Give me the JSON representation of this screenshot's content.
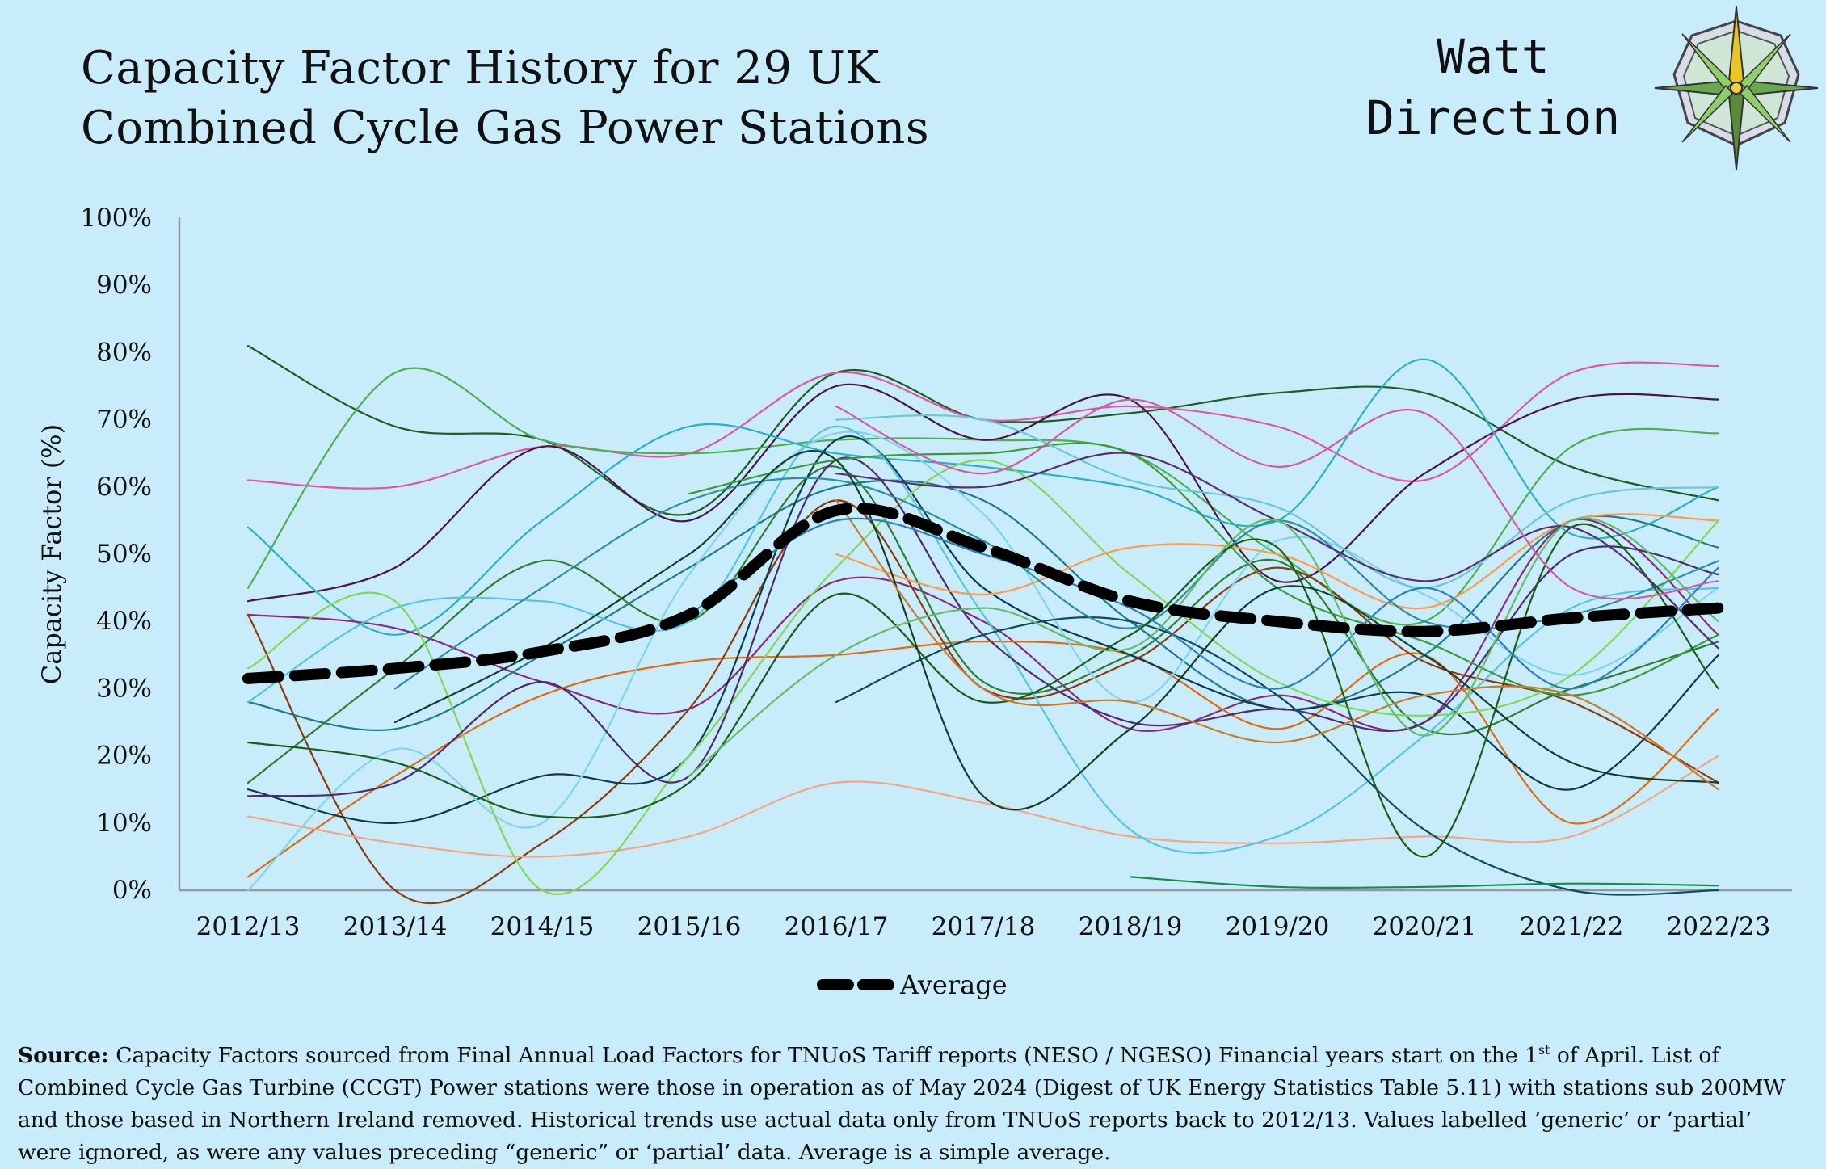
{
  "header": {
    "title_line1": "Capacity Factor History for 29 UK",
    "title_line2": "Combined Cycle Gas Power Stations",
    "brand_line1": "Watt",
    "brand_line2": "Direction"
  },
  "chart_data": {
    "type": "line",
    "title": "Capacity Factor History for 29 UK Combined Cycle Gas Power Stations",
    "xlabel": "",
    "ylabel": "Capacity Factor (%)",
    "categories": [
      "2012/13",
      "2013/14",
      "2014/15",
      "2015/16",
      "2016/17",
      "2017/18",
      "2018/19",
      "2019/20",
      "2020/21",
      "2021/22",
      "2022/23"
    ],
    "y_ticks": [
      "0%",
      "10%",
      "20%",
      "30%",
      "40%",
      "50%",
      "60%",
      "70%",
      "80%",
      "90%",
      "100%"
    ],
    "ylim": [
      0,
      100
    ],
    "grid": false,
    "legend_position": "bottom-center",
    "average": {
      "name": "Average",
      "color": "#000000",
      "values": [
        31.5,
        33,
        35.5,
        41,
        56.5,
        51,
        43,
        40,
        38.5,
        40.5,
        42
      ]
    },
    "series": [
      {
        "color": "#1b5e20",
        "values": [
          81,
          69,
          67,
          56,
          77,
          70,
          71,
          74,
          74,
          63,
          58
        ]
      },
      {
        "color": "#e0569f",
        "values": [
          61,
          60,
          66,
          65,
          77,
          70,
          72,
          69,
          61,
          77,
          78
        ]
      },
      {
        "color": "#4caf50",
        "values": [
          45,
          77,
          67,
          65,
          67,
          67,
          65,
          50,
          40,
          66,
          68
        ]
      },
      {
        "color": "#4a1448",
        "values": [
          43,
          48,
          66,
          55,
          75,
          67,
          73,
          46,
          62,
          73,
          73
        ]
      },
      {
        "color": "#2ab0c8",
        "values": [
          54,
          38,
          55,
          69,
          65,
          63,
          60,
          55,
          79,
          53,
          60
        ]
      },
      {
        "color": "#8a2a7a",
        "values": [
          41,
          39,
          31,
          27,
          46,
          40,
          24,
          29,
          25,
          55,
          38
        ]
      },
      {
        "color": "#e06a10",
        "values": [
          2,
          17,
          29,
          34,
          35,
          37,
          35,
          24,
          35,
          10,
          27
        ]
      },
      {
        "color": "#8b3a0e",
        "values": [
          41,
          0,
          7,
          27,
          58,
          30,
          34,
          48,
          34,
          28,
          16
        ]
      },
      {
        "color": "#f4a582",
        "values": [
          11,
          7,
          5,
          8,
          16,
          13,
          8,
          7,
          8,
          8,
          20
        ]
      },
      {
        "color": "#1f7a8c",
        "values": [
          28,
          24,
          35,
          48,
          60,
          58,
          40,
          27,
          35,
          55,
          51
        ]
      },
      {
        "color": "#2e7d32",
        "values": [
          16,
          33,
          49,
          40,
          63,
          31,
          35,
          49,
          24,
          30,
          37
        ]
      },
      {
        "color": "#0d3b4c",
        "values": [
          15,
          10,
          17,
          20,
          67,
          45,
          35,
          27,
          29,
          15,
          35
        ]
      },
      {
        "color": "#80d4ee",
        "values": [
          0,
          21,
          10,
          47,
          68,
          56,
          28,
          52,
          44,
          32,
          45
        ]
      },
      {
        "color": "#56c4e6",
        "values": [
          28,
          42,
          43,
          40,
          69,
          41,
          9,
          8,
          23,
          42,
          45
        ]
      },
      {
        "color": "#7ed957",
        "values": [
          33,
          43,
          0,
          20,
          48,
          64,
          47,
          31,
          26,
          32,
          55
        ]
      },
      {
        "color": "#4e2a6e",
        "values": [
          14,
          16,
          31,
          17,
          64,
          38,
          25,
          27,
          25,
          50,
          47
        ]
      },
      {
        "color": "#ff9a4a",
        "values": [
          null,
          null,
          null,
          null,
          50,
          44,
          51,
          50,
          42,
          55,
          55
        ]
      },
      {
        "color": "#0e4d5c",
        "values": [
          null,
          null,
          null,
          null,
          28,
          38,
          40,
          29,
          9,
          0,
          0
        ]
      },
      {
        "color": "#3a9a3a",
        "values": [
          null,
          null,
          null,
          59,
          64,
          65,
          65,
          45,
          37,
          29,
          38
        ]
      },
      {
        "color": "#2e8fa0",
        "values": [
          null,
          30,
          45,
          58,
          61,
          52,
          39,
          55,
          40,
          41,
          49
        ]
      },
      {
        "color": "#1a5c1a",
        "values": [
          22,
          19,
          11,
          16,
          44,
          28,
          38,
          51,
          5,
          54,
          30
        ]
      },
      {
        "color": "#1a8a4a",
        "values": [
          null,
          null,
          null,
          null,
          null,
          null,
          2,
          0.5,
          0.5,
          1,
          0.7
        ]
      },
      {
        "color": "#6ac8d9",
        "values": [
          null,
          null,
          null,
          null,
          70,
          70,
          61,
          57,
          45,
          58,
          60
        ]
      },
      {
        "color": "#143d2a",
        "values": [
          null,
          25,
          36,
          50,
          64,
          14,
          24,
          45,
          35,
          19,
          16
        ]
      },
      {
        "color": "#5a2d6e",
        "values": [
          null,
          null,
          null,
          null,
          62,
          60,
          65,
          55,
          46,
          54,
          36
        ]
      },
      {
        "color": "#c97a2a",
        "values": [
          null,
          null,
          null,
          null,
          58,
          30,
          28,
          22,
          29,
          29,
          15
        ]
      },
      {
        "color": "#2b7fc0",
        "values": [
          null,
          null,
          null,
          41,
          55,
          50,
          42,
          30,
          45,
          30,
          48
        ]
      },
      {
        "color": "#66bb6a",
        "values": [
          null,
          null,
          null,
          17,
          35,
          42,
          36,
          55,
          23,
          55,
          40
        ]
      },
      {
        "color": "#d35aa0",
        "values": [
          null,
          null,
          null,
          null,
          72,
          62,
          73,
          63,
          71,
          45,
          46
        ]
      }
    ]
  },
  "source": {
    "label": "Source:",
    "text_1": " Capacity Factors sourced from Final Annual Load Factors for TNUoS Tariff reports (NESO / NGESO) Financial years start on the 1",
    "superscript": "st",
    "text_2": " of April.  List of Combined Cycle Gas Turbine (CCGT) Power stations were those in operation as of May 2024 (Digest of UK Energy Statistics Table 5.11) with stations sub 200MW and those based in Northern Ireland removed. Historical trends use actual data only from TNUoS reports back to 2012/13. Values labelled ’generic’ or ‘partial’ were ignored, as were any values preceding “generic” or ‘partial’ data. Average is a simple average."
  },
  "logo": {
    "icon": "compass-rose-icon"
  }
}
